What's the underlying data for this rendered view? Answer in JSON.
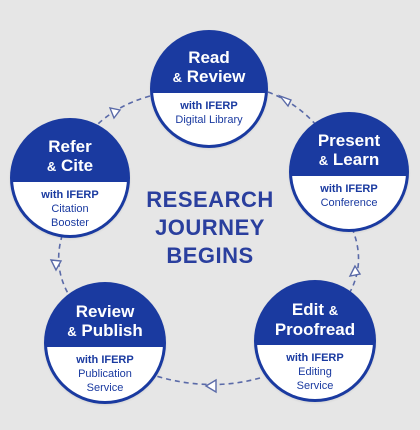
{
  "center": {
    "line1": "RESEARCH",
    "line2": "JOURNEY",
    "line3": "BEGINS"
  },
  "nodes": [
    {
      "key": "read",
      "title_a": "Read",
      "title_b": "Review",
      "with": "with IFERP",
      "sub": [
        "Digital Library"
      ]
    },
    {
      "key": "present",
      "title_a": "Present",
      "title_b": "Learn",
      "with": "with IFERP",
      "sub": [
        "Conference"
      ]
    },
    {
      "key": "edit",
      "title_a": "Edit",
      "title_b": "Proofread",
      "with": "with IFERP",
      "sub": [
        "Editing",
        "Service"
      ]
    },
    {
      "key": "publish",
      "title_a": "Review",
      "title_b": "Publish",
      "with": "with IFERP",
      "sub": [
        "Publication",
        "Service"
      ]
    },
    {
      "key": "cite",
      "title_a": "Refer",
      "title_b": "Cite",
      "with": "with IFERP",
      "sub": [
        "Citation",
        "Booster"
      ]
    }
  ],
  "amp": "&",
  "colors": {
    "primary": "#1a3aa0",
    "background": "#e6e6e6",
    "white": "#ffffff",
    "connector": "#5a6aa8"
  },
  "icons": {
    "connector_arrow": "arrowhead-icon"
  }
}
